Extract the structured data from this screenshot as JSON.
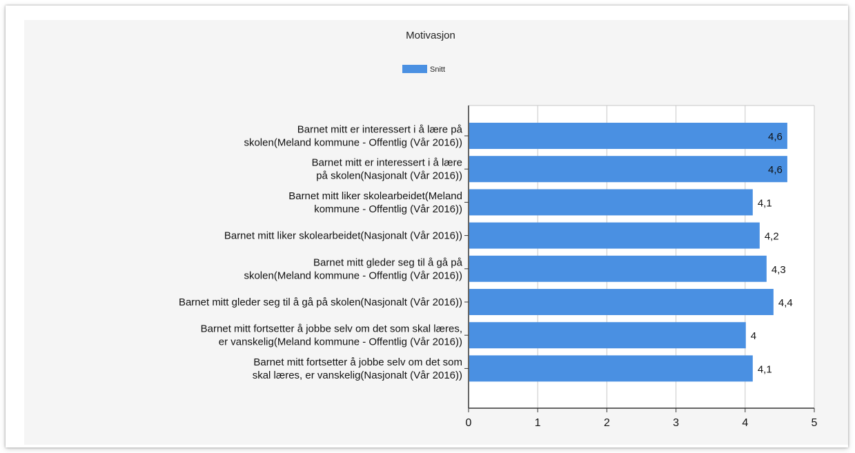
{
  "chart_data": {
    "type": "bar",
    "orientation": "horizontal",
    "title": "Motivasjon",
    "legend": {
      "position": "top-center",
      "entries": [
        "Snitt"
      ]
    },
    "series": [
      {
        "name": "Snitt",
        "color": "#4a90e2",
        "values": [
          4.6,
          4.6,
          4.1,
          4.2,
          4.3,
          4.4,
          4.0,
          4.1
        ]
      }
    ],
    "value_labels": [
      "4,6",
      "4,6",
      "4,1",
      "4,2",
      "4,3",
      "4,4",
      "4",
      "4,1"
    ],
    "categories": [
      [
        "Barnet mitt er interessert i å lære på",
        "skolen(Meland kommune - Offentlig (Vår 2016))"
      ],
      [
        "Barnet mitt er interessert i å lære",
        "på skolen(Nasjonalt (Vår 2016))"
      ],
      [
        "Barnet mitt liker skolearbeidet(Meland",
        "kommune - Offentlig (Vår 2016))"
      ],
      [
        "Barnet mitt liker skolearbeidet(Nasjonalt (Vår 2016))"
      ],
      [
        "Barnet mitt gleder seg til å gå på",
        "skolen(Meland kommune - Offentlig (Vår 2016))"
      ],
      [
        "Barnet mitt gleder seg til å gå på skolen(Nasjonalt (Vår 2016))"
      ],
      [
        "Barnet mitt fortsetter å jobbe selv om det som skal læres,",
        "er vanskelig(Meland kommune - Offentlig (Vår 2016))"
      ],
      [
        "Barnet mitt fortsetter å jobbe selv om det som",
        "skal læres, er vanskelig(Nasjonalt (Vår 2016))"
      ]
    ],
    "xlim": [
      0,
      5
    ],
    "x_ticks": [
      0,
      1,
      2,
      3,
      4,
      5
    ],
    "x_tick_labels": [
      "0",
      "1",
      "2",
      "3",
      "4",
      "5"
    ],
    "grid": true
  }
}
